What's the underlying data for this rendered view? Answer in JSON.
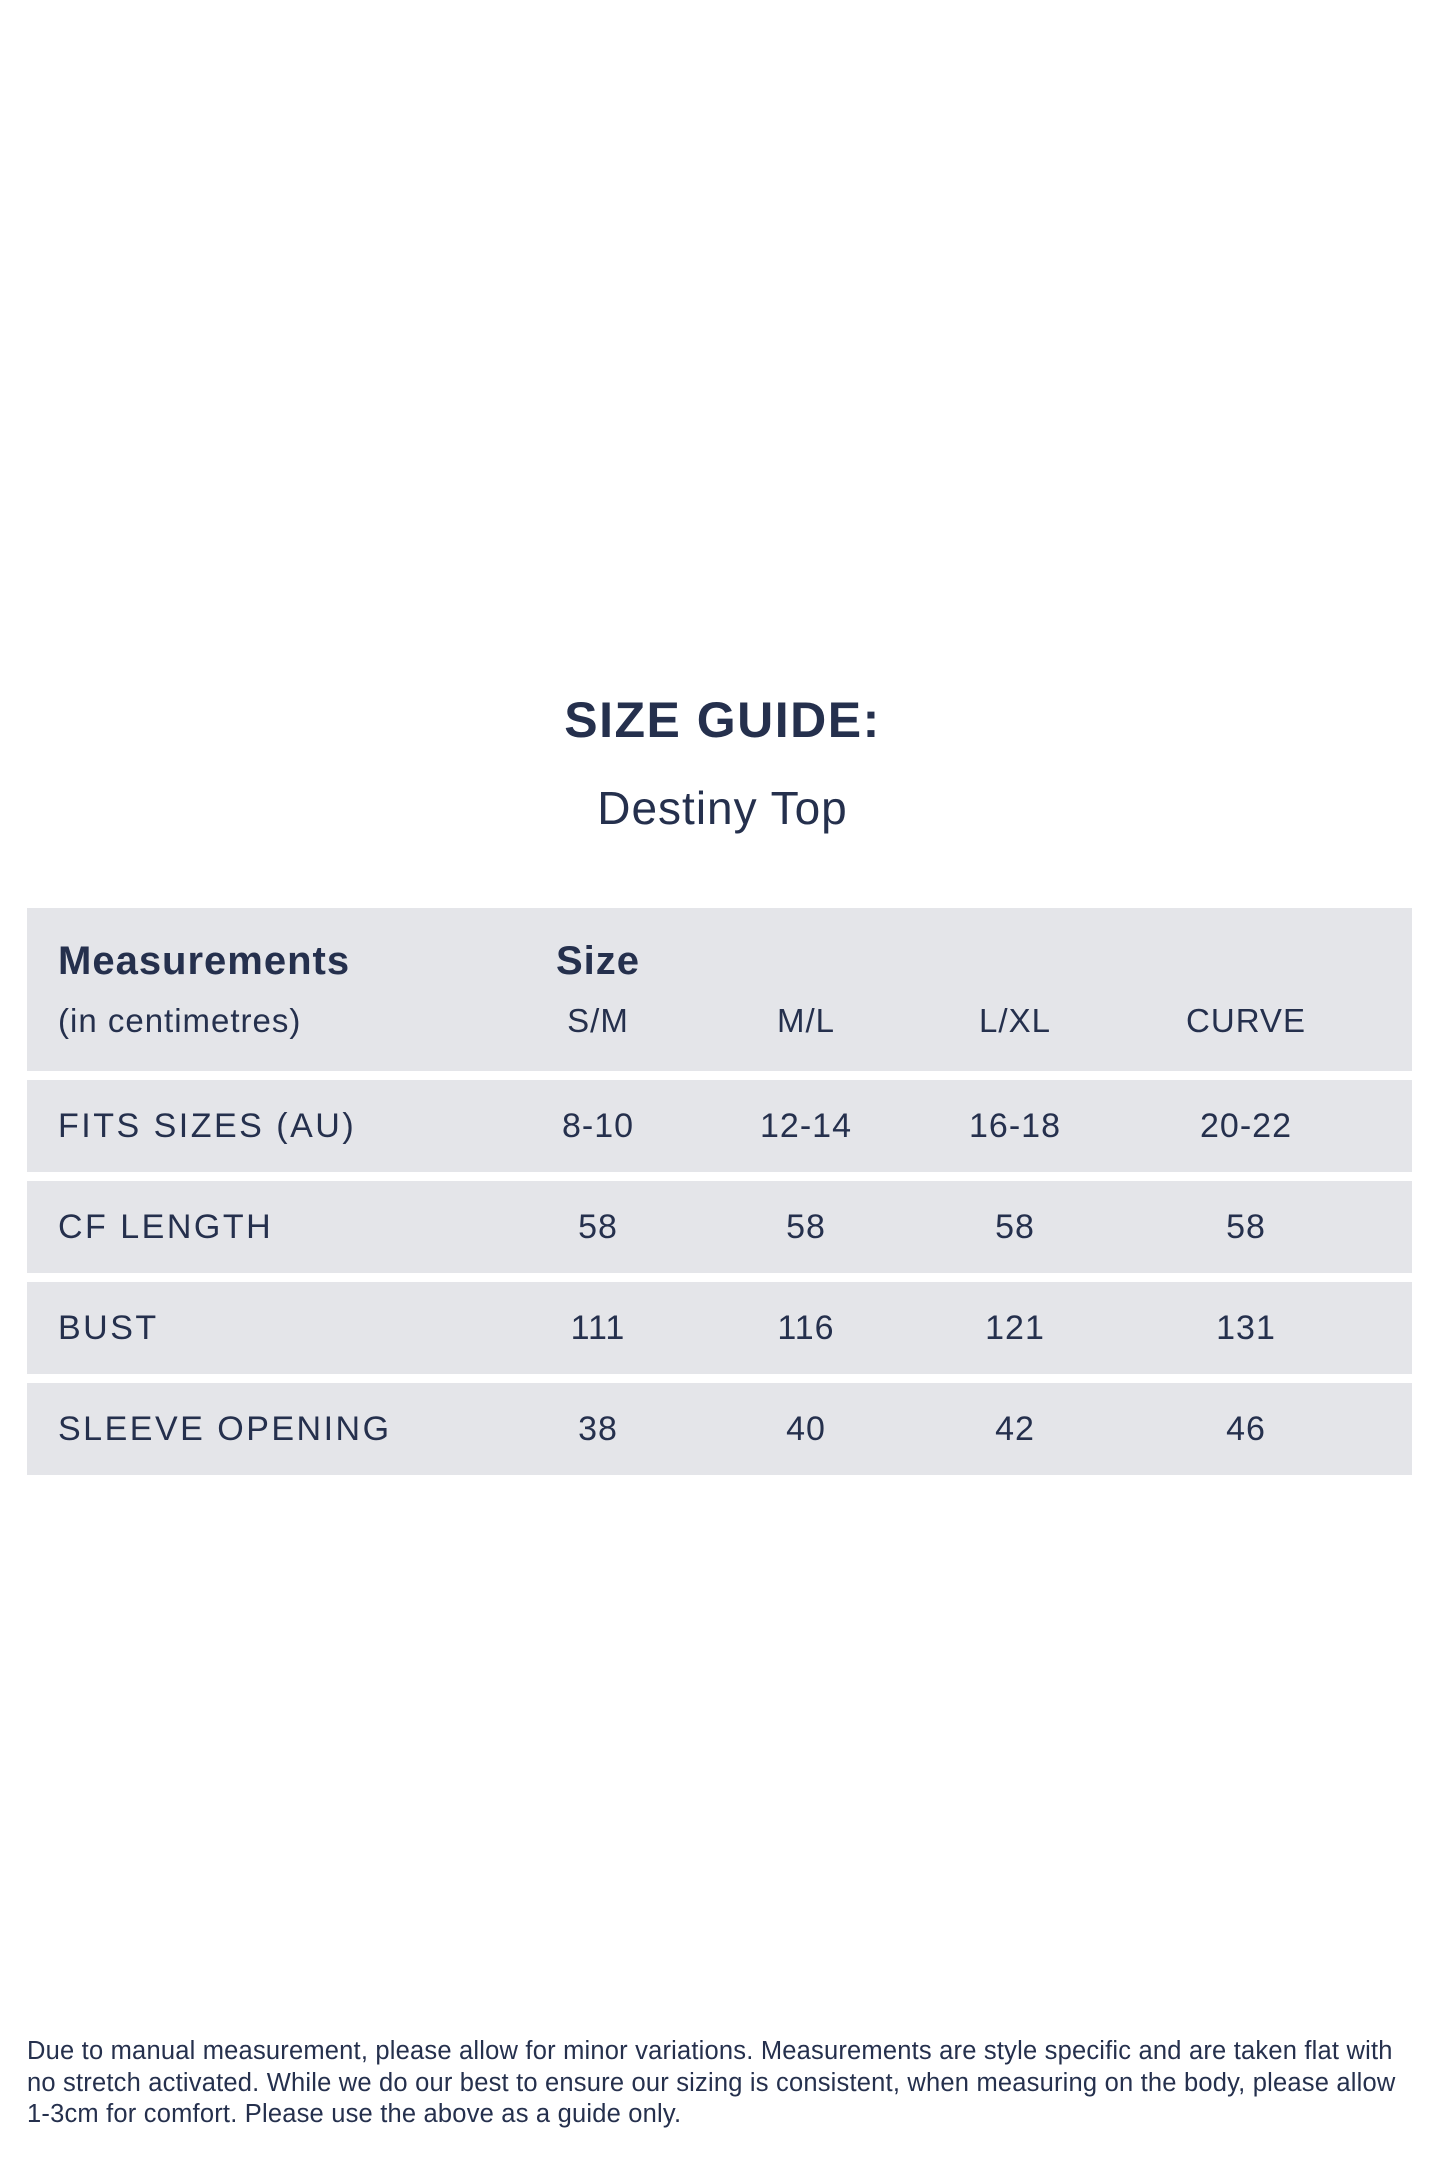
{
  "page": {
    "title": "SIZE GUIDE:",
    "subtitle": "Destiny Top"
  },
  "table": {
    "header": {
      "label_primary": "Measurements",
      "label_secondary": "(in centimetres)",
      "size_label": "Size",
      "columns": [
        "S/M",
        "M/L",
        "L/XL",
        "CURVE"
      ]
    },
    "rows": [
      {
        "label": "FITS SIZES (AU)",
        "values": [
          "8-10",
          "12-14",
          "16-18",
          "20-22"
        ]
      },
      {
        "label": "CF LENGTH",
        "values": [
          "58",
          "58",
          "58",
          "58"
        ]
      },
      {
        "label": "BUST",
        "values": [
          "111",
          "116",
          "121",
          "131"
        ]
      },
      {
        "label": "SLEEVE OPENING",
        "values": [
          "38",
          "40",
          "42",
          "46"
        ]
      }
    ]
  },
  "footer": {
    "lines": [
      "Due to manual measurement, please allow for minor variations. Measurements are style specific and are taken flat with",
      "no stretch activated. While we do our best to ensure our sizing is consistent, when measuring on the body, please allow",
      "1-3cm for comfort. Please use the above as a guide only."
    ]
  },
  "colors": {
    "text_navy": "#25304D",
    "row_gray": "#E4E5E9",
    "background": "#FFFFFF"
  }
}
